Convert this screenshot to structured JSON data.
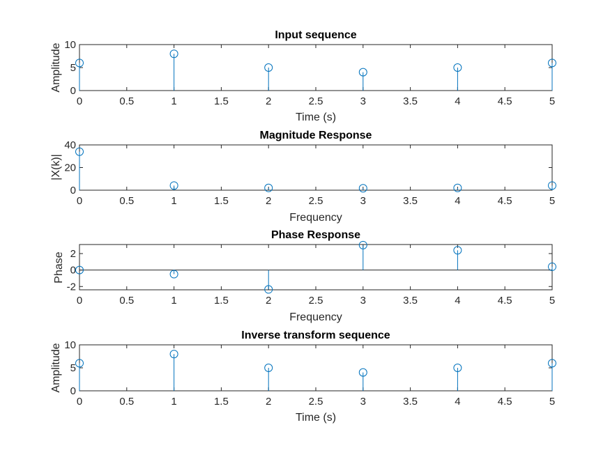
{
  "chart_data": [
    {
      "type": "stem",
      "title": "Input sequence",
      "xlabel": "Time (s)",
      "ylabel": "Amplitude",
      "xlim": [
        0,
        5
      ],
      "ylim": [
        0,
        10
      ],
      "x_ticks": [
        0,
        0.5,
        1,
        1.5,
        2,
        2.5,
        3,
        3.5,
        4,
        4.5,
        5
      ],
      "x_tick_labels": [
        "0",
        "0.5",
        "1",
        "1.5",
        "2",
        "2.5",
        "3",
        "3.5",
        "4",
        "4.5",
        "5"
      ],
      "y_ticks": [
        0,
        5,
        10
      ],
      "y_tick_labels": [
        "0",
        "5",
        "10"
      ],
      "x": [
        0,
        1,
        2,
        3,
        4,
        5
      ],
      "y": [
        6,
        8,
        5,
        4,
        5,
        6
      ],
      "baseline": false,
      "color": "#0072BD",
      "grid": false
    },
    {
      "type": "stem",
      "title": "Magnitude Response",
      "xlabel": "Frequency",
      "ylabel": "|X(k)|",
      "xlim": [
        0,
        5
      ],
      "ylim": [
        0,
        40
      ],
      "x_ticks": [
        0,
        0.5,
        1,
        1.5,
        2,
        2.5,
        3,
        3.5,
        4,
        4.5,
        5
      ],
      "x_tick_labels": [
        "0",
        "0.5",
        "1",
        "1.5",
        "2",
        "2.5",
        "3",
        "3.5",
        "4",
        "4.5",
        "5"
      ],
      "y_ticks": [
        0,
        20,
        40
      ],
      "y_tick_labels": [
        "0",
        "20",
        "40"
      ],
      "x": [
        0,
        1,
        2,
        3,
        4,
        5
      ],
      "y": [
        34,
        4.1,
        2,
        1.7,
        2,
        4.1
      ],
      "baseline": false,
      "color": "#0072BD",
      "grid": false
    },
    {
      "type": "stem",
      "title": "Phase Response",
      "xlabel": "Frequency",
      "ylabel": "Phase",
      "xlim": [
        0,
        5
      ],
      "ylim": [
        -2.4,
        3.1
      ],
      "x_ticks": [
        0,
        0.5,
        1,
        1.5,
        2,
        2.5,
        3,
        3.5,
        4,
        4.5,
        5
      ],
      "x_tick_labels": [
        "0",
        "0.5",
        "1",
        "1.5",
        "2",
        "2.5",
        "3",
        "3.5",
        "4",
        "4.5",
        "5"
      ],
      "y_ticks": [
        -2,
        0,
        2
      ],
      "y_tick_labels": [
        "-2",
        "0",
        "2"
      ],
      "x": [
        0,
        1,
        2,
        3,
        4,
        5
      ],
      "y": [
        0,
        -0.5,
        -2.35,
        3.03,
        2.4,
        0.4
      ],
      "baseline": true,
      "color": "#0072BD",
      "grid": false
    },
    {
      "type": "stem",
      "title": "Inverse transform sequence",
      "xlabel": "Time (s)",
      "ylabel": "Amplitude",
      "xlim": [
        0,
        5
      ],
      "ylim": [
        0,
        10
      ],
      "x_ticks": [
        0,
        0.5,
        1,
        1.5,
        2,
        2.5,
        3,
        3.5,
        4,
        4.5,
        5
      ],
      "x_tick_labels": [
        "0",
        "0.5",
        "1",
        "1.5",
        "2",
        "2.5",
        "3",
        "3.5",
        "4",
        "4.5",
        "5"
      ],
      "y_ticks": [
        0,
        5,
        10
      ],
      "y_tick_labels": [
        "0",
        "5",
        "10"
      ],
      "x": [
        0,
        1,
        2,
        3,
        4,
        5
      ],
      "y": [
        6,
        8,
        5,
        4,
        5,
        6
      ],
      "baseline": false,
      "color": "#0072BD",
      "grid": false
    }
  ]
}
